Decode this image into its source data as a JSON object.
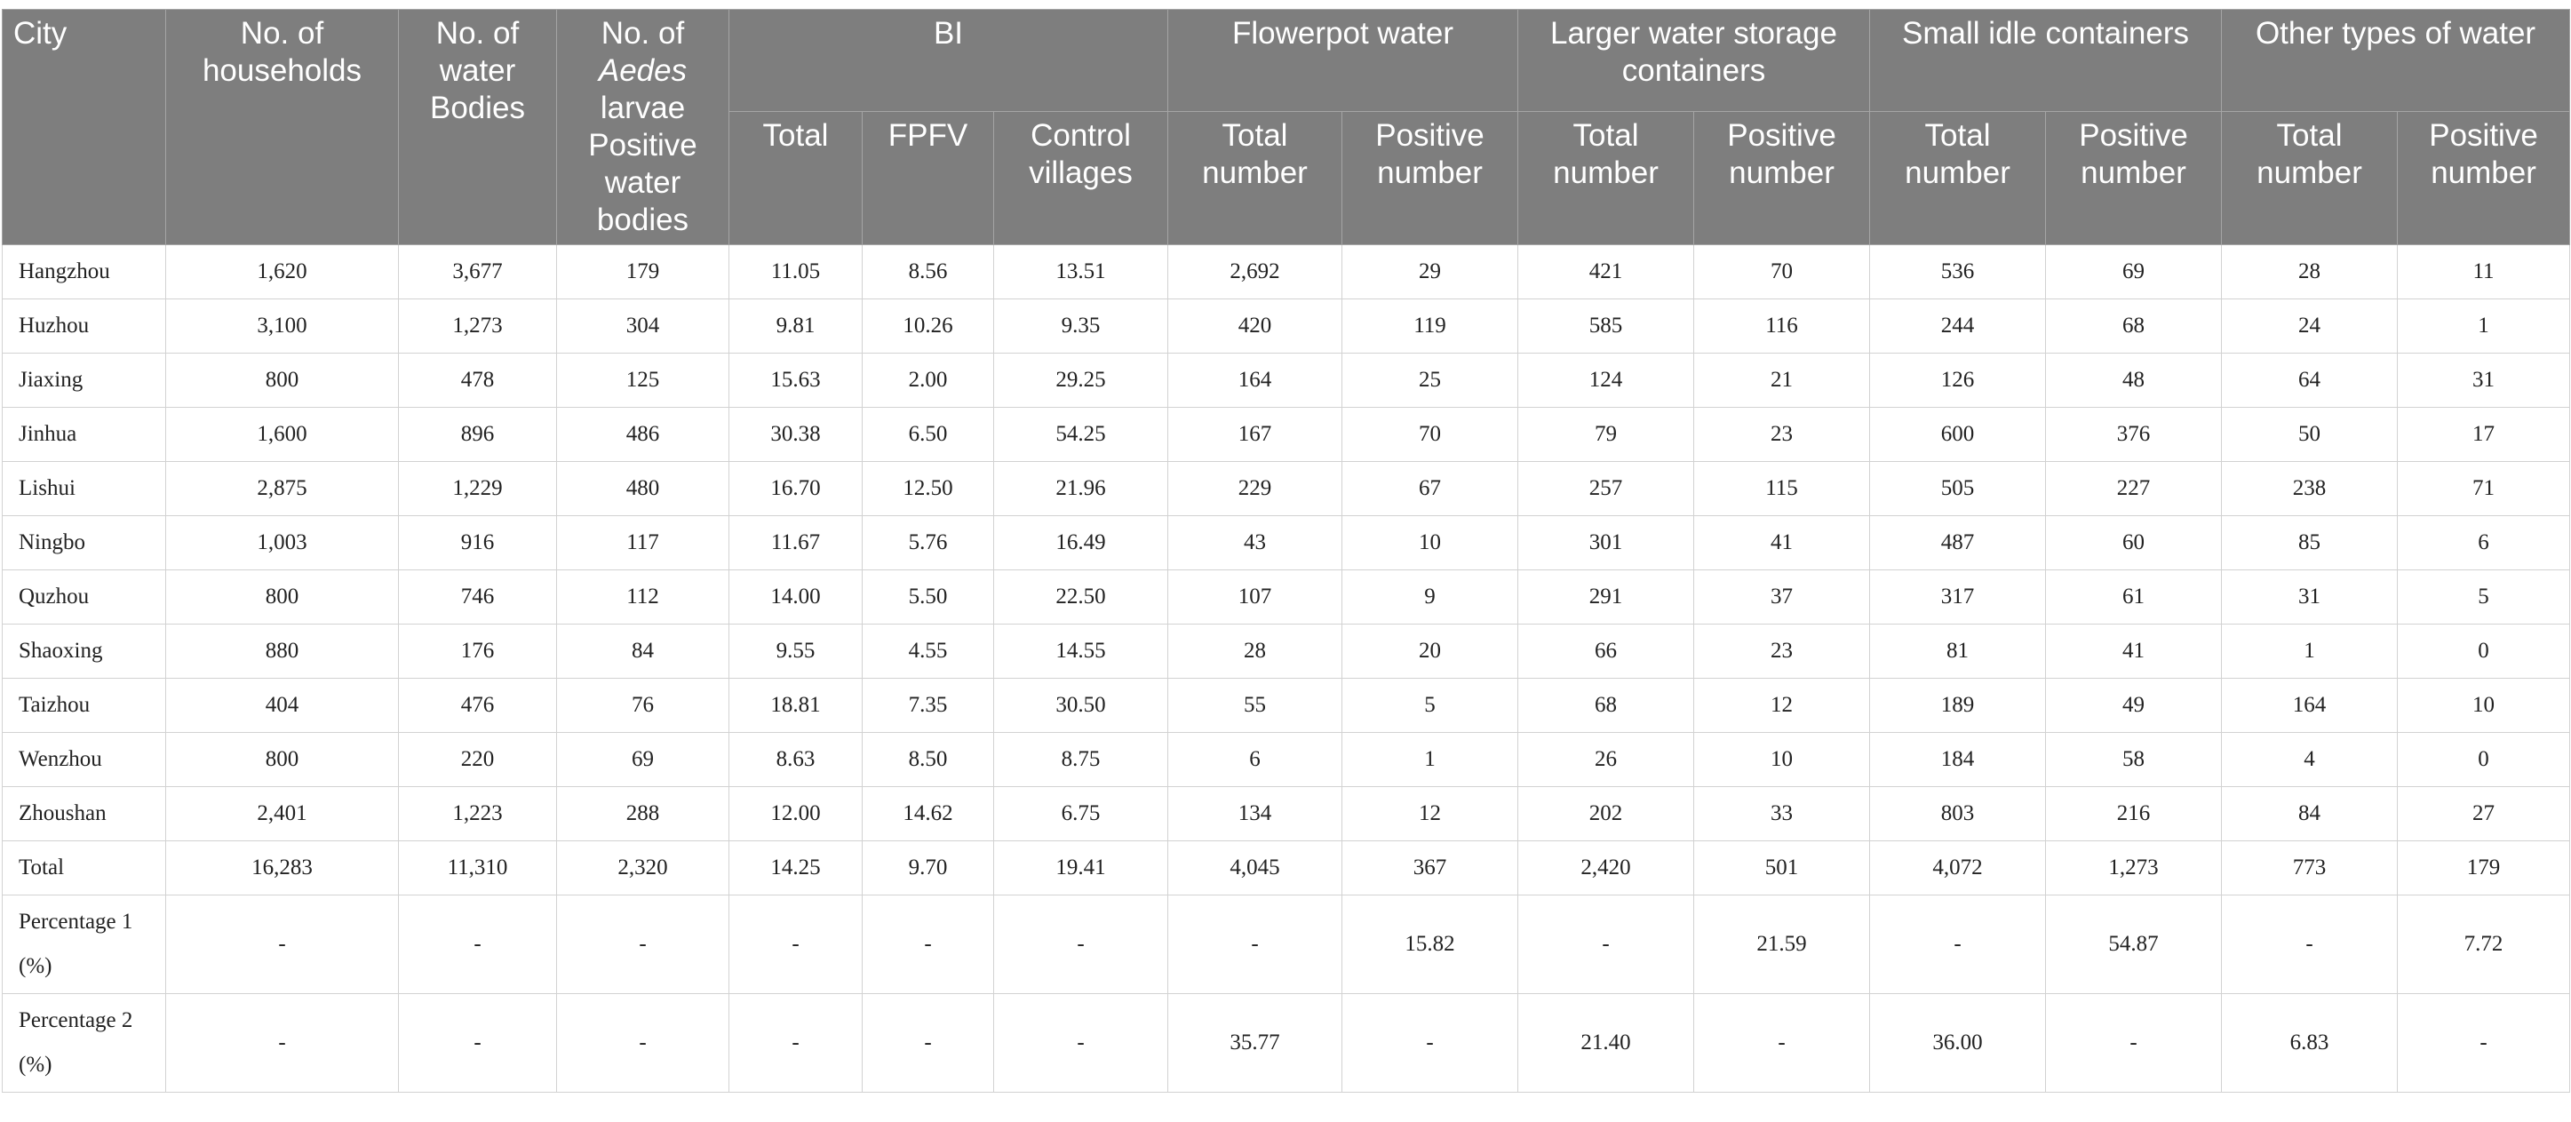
{
  "headers": {
    "city": "City",
    "households": "No. of households",
    "water_bodies": "No. of water Bodies",
    "positive_prefix": "No. of",
    "positive_italic": "Aedes",
    "positive_suffix": "larvae Positive water bodies",
    "bi": "BI",
    "bi_total": "Total",
    "bi_fpfv": "FPFV",
    "bi_control": "Control villages",
    "flowerpot": "Flowerpot water",
    "larger": "Larger water storage containers",
    "small": "Small idle containers",
    "other": "Other types of water",
    "total_number": "Total number",
    "positive_number": "Positive number"
  },
  "rows": [
    [
      "Hangzhou",
      "1,620",
      "3,677",
      "179",
      "11.05",
      "8.56",
      "13.51",
      "2,692",
      "29",
      "421",
      "70",
      "536",
      "69",
      "28",
      "11"
    ],
    [
      "Huzhou",
      "3,100",
      "1,273",
      "304",
      "9.81",
      "10.26",
      "9.35",
      "420",
      "119",
      "585",
      "116",
      "244",
      "68",
      "24",
      "1"
    ],
    [
      "Jiaxing",
      "800",
      "478",
      "125",
      "15.63",
      "2.00",
      "29.25",
      "164",
      "25",
      "124",
      "21",
      "126",
      "48",
      "64",
      "31"
    ],
    [
      "Jinhua",
      "1,600",
      "896",
      "486",
      "30.38",
      "6.50",
      "54.25",
      "167",
      "70",
      "79",
      "23",
      "600",
      "376",
      "50",
      "17"
    ],
    [
      "Lishui",
      "2,875",
      "1,229",
      "480",
      "16.70",
      "12.50",
      "21.96",
      "229",
      "67",
      "257",
      "115",
      "505",
      "227",
      "238",
      "71"
    ],
    [
      "Ningbo",
      "1,003",
      "916",
      "117",
      "11.67",
      "5.76",
      "16.49",
      "43",
      "10",
      "301",
      "41",
      "487",
      "60",
      "85",
      "6"
    ],
    [
      "Quzhou",
      "800",
      "746",
      "112",
      "14.00",
      "5.50",
      "22.50",
      "107",
      "9",
      "291",
      "37",
      "317",
      "61",
      "31",
      "5"
    ],
    [
      "Shaoxing",
      "880",
      "176",
      "84",
      "9.55",
      "4.55",
      "14.55",
      "28",
      "20",
      "66",
      "23",
      "81",
      "41",
      "1",
      "0"
    ],
    [
      "Taizhou",
      "404",
      "476",
      "76",
      "18.81",
      "7.35",
      "30.50",
      "55",
      "5",
      "68",
      "12",
      "189",
      "49",
      "164",
      "10"
    ],
    [
      "Wenzhou",
      "800",
      "220",
      "69",
      "8.63",
      "8.50",
      "8.75",
      "6",
      "1",
      "26",
      "10",
      "184",
      "58",
      "4",
      "0"
    ],
    [
      "Zhoushan",
      "2,401",
      "1,223",
      "288",
      "12.00",
      "14.62",
      "6.75",
      "134",
      "12",
      "202",
      "33",
      "803",
      "216",
      "84",
      "27"
    ],
    [
      "Total",
      "16,283",
      "11,310",
      "2,320",
      "14.25",
      "9.70",
      "19.41",
      "4,045",
      "367",
      "2,420",
      "501",
      "4,072",
      "1,273",
      "773",
      "179"
    ],
    [
      "Percentage 1 (%)",
      "-",
      "-",
      "-",
      "-",
      "-",
      "-",
      "-",
      "15.82",
      "-",
      "21.59",
      "-",
      "54.87",
      "-",
      "7.72"
    ],
    [
      "Percentage 2 (%)",
      "-",
      "-",
      "-",
      "-",
      "-",
      "-",
      "35.77",
      "-",
      "21.40",
      "-",
      "36.00",
      "-",
      "6.83",
      "-"
    ]
  ]
}
